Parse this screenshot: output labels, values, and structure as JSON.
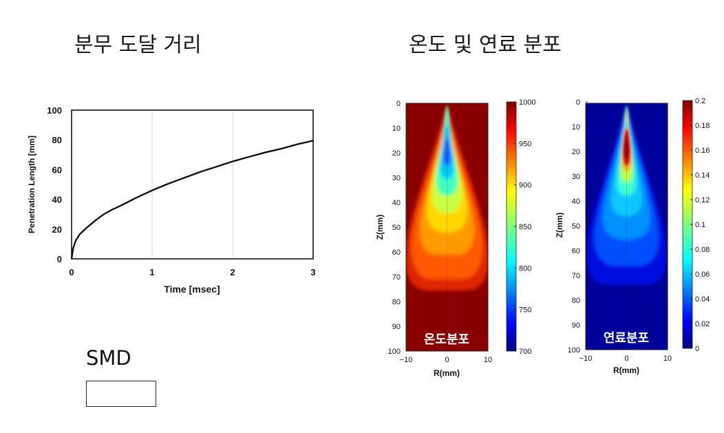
{
  "headings": {
    "left": "분무 도달 거리",
    "right": "온도 및 연료 분포"
  },
  "smd": {
    "label": "SMD",
    "box_value": ""
  },
  "colors": {
    "line": "#111111",
    "grid": "#d9d9d9",
    "jet_dark_red": "#8a0000",
    "jet_dark_blue": "#00007f"
  },
  "chart_data": [
    {
      "type": "line",
      "title": "",
      "xlabel": "Time [msec]",
      "ylabel": "Penetration Length [mm]",
      "xlim": [
        0,
        3
      ],
      "ylim": [
        0,
        100
      ],
      "x_ticks": [
        "0",
        "1",
        "2",
        "3"
      ],
      "y_ticks": [
        "0",
        "20",
        "40",
        "60",
        "80",
        "100"
      ],
      "grid": true,
      "series": [
        {
          "x": [
            0,
            0.02,
            0.05,
            0.1,
            0.15,
            0.2,
            0.3,
            0.4,
            0.5,
            0.6,
            0.8,
            1.0,
            1.2,
            1.4,
            1.6,
            1.8,
            2.0,
            2.2,
            2.4,
            2.6,
            2.8,
            3.0
          ],
          "y": [
            0,
            7,
            12,
            16.5,
            19,
            21.5,
            26,
            30,
            33,
            35.5,
            41,
            46,
            50.5,
            54.5,
            58.5,
            62,
            65.5,
            68.5,
            71.5,
            74,
            77,
            79.5
          ]
        }
      ]
    },
    {
      "type": "heatmap",
      "xlabel": "R(mm)",
      "ylabel": "Z(mm)",
      "xlim": [
        -10,
        10
      ],
      "ylim": [
        0,
        100
      ],
      "y_inverted": true,
      "x_ticks": [
        "−10",
        "0",
        "10"
      ],
      "y_ticks": [
        "0",
        "10",
        "20",
        "30",
        "40",
        "50",
        "60",
        "70",
        "80",
        "90",
        "100"
      ],
      "colorbar": {
        "min": 700,
        "max": 1000,
        "ticks": [
          "1000",
          "950",
          "900",
          "850",
          "800",
          "750",
          "700"
        ]
      },
      "annotation": "온도분포",
      "ambient_value": 1000
    },
    {
      "type": "heatmap",
      "xlabel": "R(mm)",
      "ylabel": "Z(mm)",
      "xlim": [
        -10,
        10
      ],
      "ylim": [
        0,
        100
      ],
      "y_inverted": true,
      "x_ticks": [
        "−10",
        "0",
        "10"
      ],
      "y_ticks": [
        "0",
        "10",
        "20",
        "30",
        "40",
        "50",
        "60",
        "70",
        "80",
        "90",
        "100"
      ],
      "colorbar": {
        "min": 0,
        "max": 0.2,
        "ticks": [
          "0.2",
          "0.18",
          "0.16",
          "0.14",
          "0.12",
          "0.1",
          "0.08",
          "0.06",
          "0.04",
          "0.02",
          "0"
        ]
      },
      "annotation": "연료분포",
      "ambient_value": 0
    }
  ]
}
